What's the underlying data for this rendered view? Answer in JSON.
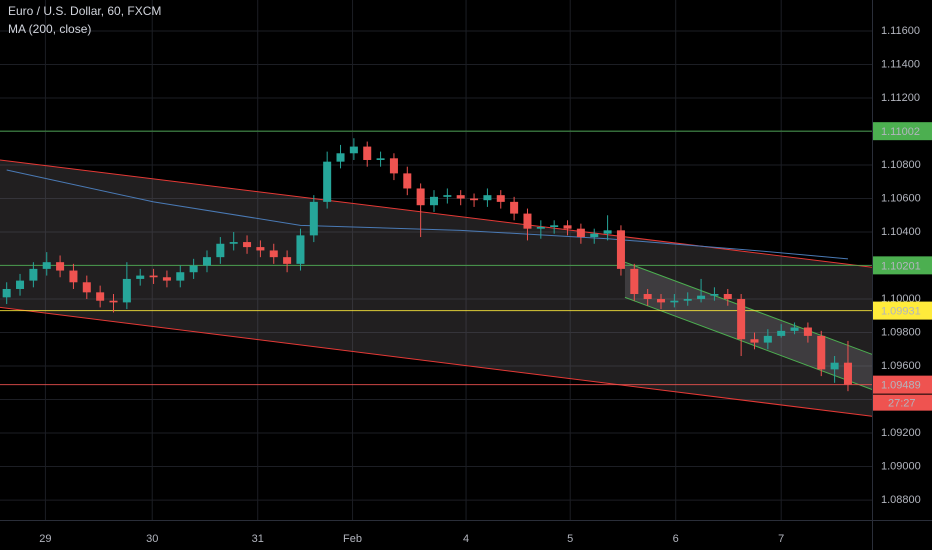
{
  "chart_data": {
    "type": "candlestick",
    "title": "Euro / U.S. Dollar, 60, FXCM",
    "up_color": "#26a69a",
    "down_color": "#ef5350",
    "x": [
      0,
      1,
      2,
      3,
      4,
      5,
      6,
      7,
      8,
      9,
      10,
      11,
      12,
      13,
      14,
      15,
      16,
      17,
      18,
      19,
      20,
      21,
      22,
      23,
      24,
      25,
      26,
      27,
      28,
      29,
      30,
      31,
      32,
      33,
      34,
      35,
      36,
      37,
      38,
      39,
      40,
      41,
      42,
      43,
      44,
      45,
      46,
      47,
      48,
      49,
      50,
      51,
      52,
      53,
      54,
      55,
      56,
      57,
      58,
      59,
      60,
      61,
      62,
      63
    ],
    "open": [
      1.1001,
      1.1006,
      1.1011,
      1.1018,
      1.1022,
      1.1017,
      1.101,
      1.1004,
      1.0999,
      1.0998,
      1.1012,
      1.1014,
      1.1013,
      1.1011,
      1.1016,
      1.102,
      1.1025,
      1.1033,
      1.1034,
      1.1031,
      1.1029,
      1.1025,
      1.1021,
      1.1038,
      1.1058,
      1.1082,
      1.1087,
      1.1091,
      1.1083,
      1.1084,
      1.1075,
      1.1066,
      1.1056,
      1.1061,
      1.1062,
      1.106,
      1.1059,
      1.1062,
      1.1058,
      1.1051,
      1.1042,
      1.1043,
      1.1044,
      1.1042,
      1.1037,
      1.1039,
      1.1041,
      1.1018,
      1.1003,
      1.1,
      1.0998,
      1.0999,
      1.1,
      1.1002,
      1.1003,
      1.1,
      1.0976,
      1.0974,
      1.0978,
      1.0981,
      1.0983,
      1.0978,
      1.0958,
      1.0962
    ],
    "high": [
      1.101,
      1.1015,
      1.1022,
      1.1028,
      1.1026,
      1.1021,
      1.1014,
      1.1008,
      1.1003,
      1.1022,
      1.1018,
      1.1018,
      1.1017,
      1.102,
      1.1024,
      1.1029,
      1.1037,
      1.104,
      1.1038,
      1.1035,
      1.1033,
      1.1029,
      1.1042,
      1.1062,
      1.1088,
      1.1092,
      1.1096,
      1.1094,
      1.1088,
      1.1087,
      1.1079,
      1.1069,
      1.1065,
      1.1066,
      1.1065,
      1.1063,
      1.1066,
      1.1065,
      1.1061,
      1.1054,
      1.1047,
      1.1047,
      1.1047,
      1.1045,
      1.1042,
      1.105,
      1.1044,
      1.1021,
      1.1006,
      1.1003,
      1.1003,
      1.1004,
      1.1012,
      1.1007,
      1.1006,
      1.1003,
      1.098,
      1.0982,
      1.0985,
      1.0986,
      1.0986,
      1.0981,
      1.0966,
      1.0975
    ],
    "low": [
      1.0997,
      1.1002,
      1.1007,
      1.1014,
      1.1013,
      1.1006,
      1.1,
      1.0995,
      1.0992,
      1.0994,
      1.1008,
      1.1009,
      1.1007,
      1.1007,
      1.1012,
      1.1016,
      1.1021,
      1.1029,
      1.1027,
      1.1025,
      1.1021,
      1.1016,
      1.1017,
      1.1034,
      1.1054,
      1.1078,
      1.1083,
      1.1079,
      1.1079,
      1.1071,
      1.1062,
      1.1037,
      1.1052,
      1.1057,
      1.1056,
      1.1055,
      1.1055,
      1.1054,
      1.1047,
      1.1035,
      1.1036,
      1.1039,
      1.1038,
      1.1033,
      1.1033,
      1.1035,
      1.1014,
      1.0999,
      1.0996,
      1.0994,
      1.0995,
      1.0996,
      1.0998,
      1.0999,
      1.0996,
      1.0966,
      1.097,
      1.097,
      1.0977,
      1.0979,
      1.0974,
      1.0954,
      1.095,
      1.0945
    ],
    "close": [
      1.1006,
      1.1011,
      1.1018,
      1.1022,
      1.1017,
      1.101,
      1.1004,
      1.0999,
      1.0998,
      1.1012,
      1.1014,
      1.1013,
      1.1011,
      1.1016,
      1.102,
      1.1025,
      1.1033,
      1.1034,
      1.1031,
      1.1029,
      1.1025,
      1.1021,
      1.1038,
      1.1058,
      1.1082,
      1.1087,
      1.1091,
      1.1083,
      1.1084,
      1.1075,
      1.1066,
      1.1056,
      1.1061,
      1.1062,
      1.106,
      1.1059,
      1.1062,
      1.1058,
      1.1051,
      1.1042,
      1.1043,
      1.1044,
      1.1042,
      1.1037,
      1.1039,
      1.1041,
      1.1018,
      1.1003,
      1.1,
      1.0998,
      1.0999,
      1.1,
      1.1002,
      1.1003,
      1.1,
      1.0976,
      1.0974,
      1.0978,
      1.0981,
      1.0983,
      1.0978,
      1.0958,
      1.0962,
      1.0949
    ],
    "ma": {
      "name": "MA (200, close)",
      "color": "#4a7ab5",
      "x": [
        0,
        11,
        22,
        34,
        45,
        56,
        63
      ],
      "values": [
        1.1077,
        1.1058,
        1.1044,
        1.1041,
        1.1036,
        1.1029,
        1.1024
      ]
    },
    "levels": [
      {
        "value": 1.11002,
        "color": "#4caf50",
        "text_color": "#000000"
      },
      {
        "value": 1.10201,
        "color": "#4caf50",
        "text_color": "#000000"
      },
      {
        "value": 1.09931,
        "color": "#ffeb3b",
        "text_color": "#000000"
      },
      {
        "value": 1.09489,
        "color": "#ef5350",
        "text_color": "#ffffff"
      }
    ],
    "countdown": "27:27",
    "channels": [
      {
        "color": "#e53935",
        "fill": "rgba(120,110,115,0.28)",
        "x": [
          -0.5,
          64.8
        ],
        "upper": [
          1.1083,
          1.1019
        ],
        "lower": [
          1.0995,
          1.093
        ]
      },
      {
        "color": "#4caf50",
        "fill": "rgba(130,130,135,0.30)",
        "x": [
          46.3,
          64.8
        ],
        "upper": [
          1.1022,
          1.0967
        ],
        "lower": [
          1.1001,
          1.0946
        ]
      }
    ],
    "xlim": [
      -0.5,
      64.8
    ],
    "xticks": [
      {
        "value": 2.9,
        "label": "29"
      },
      {
        "value": 10.9,
        "label": "30"
      },
      {
        "value": 18.8,
        "label": "31"
      },
      {
        "value": 25.9,
        "label": "Feb"
      },
      {
        "value": 34.4,
        "label": "4"
      },
      {
        "value": 42.2,
        "label": "5"
      },
      {
        "value": 50.1,
        "label": "6"
      },
      {
        "value": 58.0,
        "label": "7"
      }
    ],
    "ylim": [
      1.08681,
      1.11785
    ],
    "yticks": [
      {
        "value": 1.088,
        "label": "1.08800"
      },
      {
        "value": 1.09,
        "label": "1.09000"
      },
      {
        "value": 1.092,
        "label": "1.09200"
      },
      {
        "value": 1.094,
        "label": "1.09400"
      },
      {
        "value": 1.096,
        "label": "1.09600"
      },
      {
        "value": 1.098,
        "label": "1.09800"
      },
      {
        "value": 1.1,
        "label": "1.10000"
      },
      {
        "value": 1.102,
        "label": "1.10200"
      },
      {
        "value": 1.104,
        "label": "1.10400"
      },
      {
        "value": 1.106,
        "label": "1.10600"
      },
      {
        "value": 1.108,
        "label": "1.10800"
      },
      {
        "value": 1.11,
        "label": "1.11000"
      },
      {
        "value": 1.112,
        "label": "1.11200"
      },
      {
        "value": 1.114,
        "label": "1.11400"
      },
      {
        "value": 1.116,
        "label": "1.11600"
      }
    ],
    "grid": true
  }
}
